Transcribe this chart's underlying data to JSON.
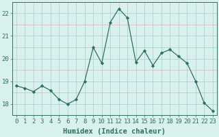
{
  "x": [
    0,
    1,
    2,
    3,
    4,
    5,
    6,
    7,
    8,
    9,
    10,
    11,
    12,
    13,
    14,
    15,
    16,
    17,
    18,
    19,
    20,
    21,
    22,
    23
  ],
  "y": [
    18.8,
    18.7,
    18.55,
    18.8,
    18.6,
    18.2,
    18.0,
    18.2,
    19.0,
    20.5,
    19.8,
    21.6,
    22.2,
    21.8,
    19.85,
    20.35,
    19.7,
    20.25,
    20.4,
    20.1,
    19.8,
    19.0,
    18.05,
    17.7
  ],
  "line_color": "#2e7060",
  "marker": "D",
  "marker_size": 2.2,
  "bg_color": "#d8f0ee",
  "grid_color_major": "#a8cccc",
  "grid_color_minor": "#c8d8d4",
  "xlabel": "Humidex (Indice chaleur)",
  "ylim": [
    17.5,
    22.5
  ],
  "xlim": [
    -0.5,
    23.5
  ],
  "yticks": [
    18,
    19,
    20,
    21,
    22
  ],
  "xticks": [
    0,
    1,
    2,
    3,
    4,
    5,
    6,
    7,
    8,
    9,
    10,
    11,
    12,
    13,
    14,
    15,
    16,
    17,
    18,
    19,
    20,
    21,
    22,
    23
  ],
  "xlabel_fontsize": 7.5,
  "tick_fontsize": 6.5,
  "spine_color": "#2e7060"
}
